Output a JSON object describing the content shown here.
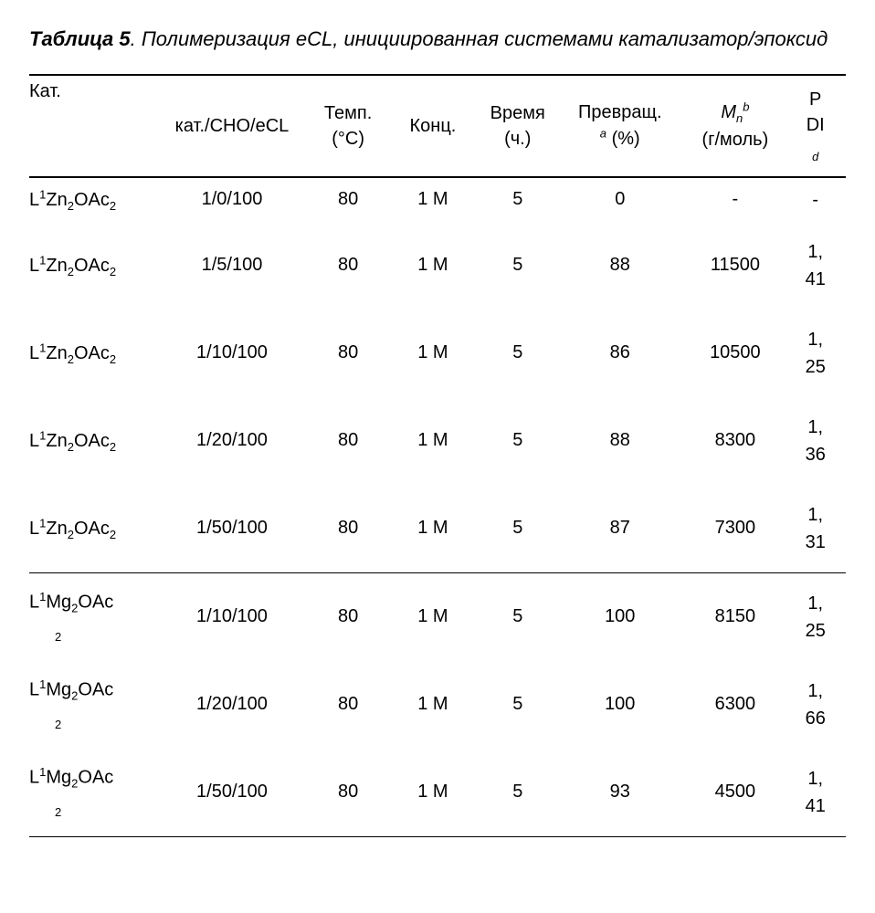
{
  "title_label": "Таблица 5",
  "title_text": ". Полимеризация eCL, инициированная системами катализатор/эпоксид",
  "columns": {
    "cat_top": "Кат.",
    "ratio": "кат./CHO/eCL",
    "temp_top": "Темп.",
    "temp_bot": "(°C)",
    "conc": "Конц.",
    "time_top": "Время",
    "time_bot": "(ч.)",
    "conv_top": "Превращ.",
    "conv_sup": "a",
    "conv_bot": " (%)",
    "mn_base": "M",
    "mn_sub": "n",
    "mn_sup": "b",
    "mn_bot": "(г/моль)",
    "pdi_top": "P",
    "pdi_mid": "DI",
    "pdi_sup": "d"
  },
  "catalysts": {
    "zn": {
      "pre": "L",
      "sup": "1",
      "mid": "Zn",
      "sub1": "2",
      "end": "OAc",
      "sub2": "2"
    },
    "mg": {
      "pre": "L",
      "sup": "1",
      "mid": "Mg",
      "sub1": "2",
      "end": "OAc",
      "sub2": "2"
    }
  },
  "rows": [
    {
      "cat": "zn",
      "stacked": false,
      "ratio": "1/0/100",
      "temp": "80",
      "conc": "1 M",
      "time": "5",
      "conv": "0",
      "mn": "-",
      "pdiA": "-",
      "pdiB": "",
      "sep": false,
      "tight": true
    },
    {
      "cat": "zn",
      "stacked": false,
      "ratio": "1/5/100",
      "temp": "80",
      "conc": "1 M",
      "time": "5",
      "conv": "88",
      "mn": "11500",
      "pdiA": "1,",
      "pdiB": "41",
      "sep": false,
      "tight": false
    },
    {
      "cat": "zn",
      "stacked": false,
      "ratio": "1/10/100",
      "temp": "80",
      "conc": "1 M",
      "time": "5",
      "conv": "86",
      "mn": "10500",
      "pdiA": "1,",
      "pdiB": "25",
      "sep": false,
      "tight": false
    },
    {
      "cat": "zn",
      "stacked": false,
      "ratio": "1/20/100",
      "temp": "80",
      "conc": "1 M",
      "time": "5",
      "conv": "88",
      "mn": "8300",
      "pdiA": "1,",
      "pdiB": "36",
      "sep": false,
      "tight": false
    },
    {
      "cat": "zn",
      "stacked": false,
      "ratio": "1/50/100",
      "temp": "80",
      "conc": "1 M",
      "time": "5",
      "conv": "87",
      "mn": "7300",
      "pdiA": "1,",
      "pdiB": "31",
      "sep": true,
      "tight": false
    },
    {
      "cat": "mg",
      "stacked": true,
      "ratio": "1/10/100",
      "temp": "80",
      "conc": "1 M",
      "time": "5",
      "conv": "100",
      "mn": "8150",
      "pdiA": "1,",
      "pdiB": "25",
      "sep": false,
      "tight": false
    },
    {
      "cat": "mg",
      "stacked": true,
      "ratio": "1/20/100",
      "temp": "80",
      "conc": "1 M",
      "time": "5",
      "conv": "100",
      "mn": "6300",
      "pdiA": "1,",
      "pdiB": "66",
      "sep": false,
      "tight": false
    },
    {
      "cat": "mg",
      "stacked": true,
      "ratio": "1/50/100",
      "temp": "80",
      "conc": "1 M",
      "time": "5",
      "conv": "93",
      "mn": "4500",
      "pdiA": "1,",
      "pdiB": "41",
      "sep": true,
      "tight": false
    }
  ]
}
